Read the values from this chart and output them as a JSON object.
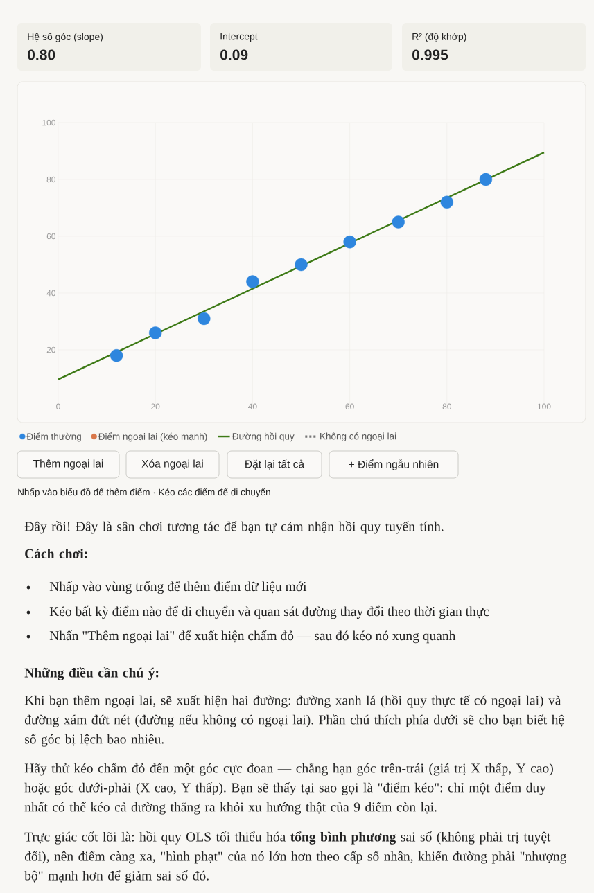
{
  "chart_data": {
    "type": "scatter",
    "x": [
      12,
      20,
      30,
      40,
      50,
      60,
      70,
      80,
      88
    ],
    "series": [
      {
        "name": "Điểm thường",
        "color": "#2e86de",
        "values": [
          18,
          26,
          31,
          44,
          50,
          58,
          65,
          72,
          80
        ]
      },
      {
        "name": "Điểm ngoại lai (kéo mạnh)",
        "color": "#d9774a",
        "values": [
          null,
          null,
          null,
          null,
          null,
          null,
          null,
          null,
          null
        ]
      },
      {
        "name": "Đường hồi quy",
        "type": "line",
        "marker": "none",
        "color": "#3d7a16",
        "x": [
          0,
          100
        ],
        "values": [
          9.6,
          89.5
        ]
      },
      {
        "name": "Không có ngoại lai",
        "type": "line",
        "marker": "none",
        "color": "#777777",
        "line_style": "dashed",
        "values": [
          null,
          null,
          null,
          null,
          null,
          null,
          null,
          null,
          null
        ]
      }
    ],
    "xlim": [
      0,
      100
    ],
    "ylim": [
      0,
      100
    ],
    "xticks": [
      0,
      20,
      40,
      60,
      80,
      100
    ],
    "yticks": [
      20,
      40,
      60,
      80,
      100
    ],
    "grid": true,
    "legend": "bottom",
    "marker": "circle",
    "annotations": [
      "Hệ số góc (slope)",
      "0.80",
      "Intercept",
      "0.09",
      "R² (độ khớp)",
      "0.995",
      "Thêm ngoại lai",
      "Xóa ngoại lai",
      "Đặt lại tất cả",
      "+ Điểm ngẫu nhiên",
      "Nhấp vào biểu đồ để thêm điểm · Kéo các điểm để di chuyển",
      "Đây rồi! Đây là sân chơi tương tác để bạn tự cảm nhận hồi quy tuyến tính.",
      "Cách chơi:",
      "Nhấp vào vùng trống để thêm điểm dữ liệu mới",
      "Kéo bất kỳ điểm nào để di chuyển và quan sát đường thay đổi theo thời gian thực",
      "Nhấn \"Thêm ngoại lai\" để xuất hiện chấm đỏ — sau đó kéo nó xung quanh",
      "Những điều cần chú ý:",
      "Khi bạn thêm ngoại lai, sẽ xuất hiện hai đường: đường xanh lá (hồi quy thực tế có ngoại lai) và đường xám đứt nét (đường nếu không có ngoại lai). Phần chú thích phía dưới sẽ cho bạn biết hệ số góc bị lệch bao nhiêu.",
      "Hãy thử kéo chấm đỏ đến một góc cực đoan — chẳng hạn góc trên-trái (giá trị X thấp, Y cao) hoặc góc dưới-phải (X cao, Y thấp). Bạn sẽ thấy tại sao gọi là \"điểm kéo\": chỉ một điểm duy nhất có thể kéo cả đường thẳng ra khỏi xu hướng thật của 9 điểm còn lại.",
      "Trực giác cốt lõi là: hồi quy OLS tối thiểu hóa **tổng bình phương** sai số (không phải trị tuyệt đối), nên điểm càng xa, \"hình phạt\" của nó lớn hơn theo cấp số nhân, khiến đường phải \"nhượng bộ\" mạnh hơn để giảm sai số đó."
    ]
  }
}
